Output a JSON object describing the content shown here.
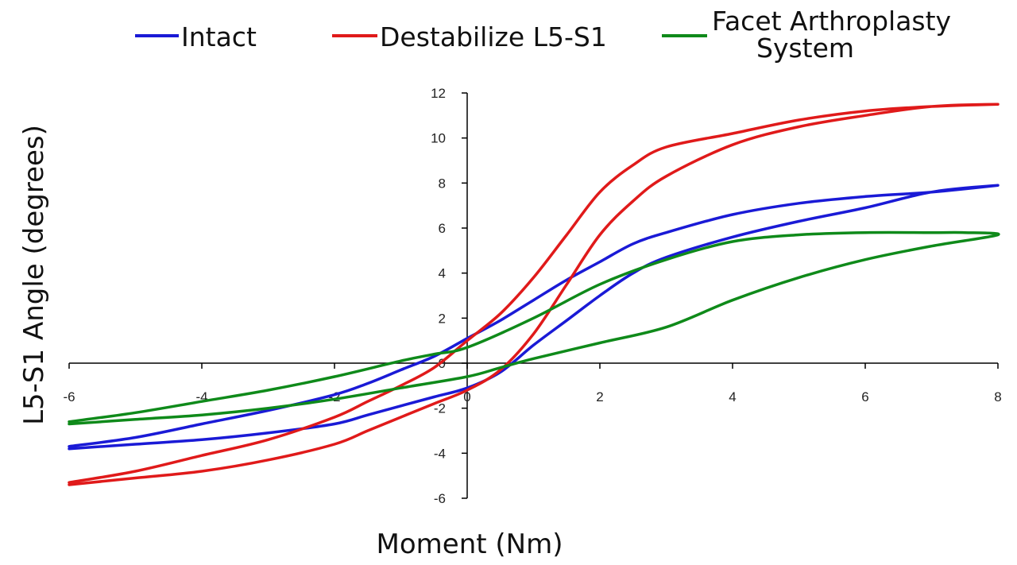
{
  "chart_data": {
    "type": "line",
    "title": "",
    "xlabel": "Moment (Nm)",
    "ylabel": "L5-S1 Angle (degrees)",
    "xlim": [
      -6,
      8
    ],
    "ylim": [
      -6,
      12
    ],
    "xticks": [
      -6,
      -4,
      -2,
      0,
      2,
      4,
      6,
      8
    ],
    "yticks": [
      -6,
      -4,
      -2,
      0,
      2,
      4,
      6,
      8,
      10,
      12
    ],
    "xtick_labels": [
      "-6",
      "-4",
      "-2",
      "0",
      "2",
      "4",
      "6",
      "8"
    ],
    "ytick_labels": [
      "-6",
      "-4",
      "-2",
      "0",
      "2",
      "4",
      "6",
      "8",
      "10",
      "12"
    ],
    "grid": false,
    "legend_position": "top",
    "series": [
      {
        "name": "Intact",
        "color": "#1a1ad6",
        "x": [
          -6,
          -5,
          -4,
          -3,
          -2,
          -1.5,
          -1,
          -0.5,
          0,
          0.5,
          1,
          1.5,
          2,
          2.5,
          3,
          4,
          5,
          6,
          7,
          8,
          7,
          6,
          5,
          4,
          3,
          2.5,
          2,
          1.5,
          1,
          0.5,
          0,
          -0.5,
          -1,
          -1.5,
          -2,
          -3,
          -4,
          -5,
          -6
        ],
        "y": [
          -3.8,
          -3.6,
          -3.4,
          -3.1,
          -2.7,
          -2.3,
          -1.9,
          -1.5,
          -1.1,
          -0.4,
          0.8,
          1.9,
          3.0,
          4.0,
          4.7,
          5.6,
          6.3,
          6.9,
          7.6,
          7.9,
          7.6,
          7.4,
          7.1,
          6.6,
          5.8,
          5.3,
          4.5,
          3.7,
          2.8,
          1.9,
          1.1,
          0.3,
          -0.3,
          -0.9,
          -1.4,
          -2.1,
          -2.7,
          -3.3,
          -3.7
        ]
      },
      {
        "name": "Destabilize L5-S1",
        "color": "#e01a1a",
        "x": [
          -6,
          -5,
          -4,
          -3,
          -2,
          -1.5,
          -1,
          -0.5,
          0,
          0.5,
          1,
          1.5,
          2,
          2.5,
          3,
          4,
          5,
          6,
          7,
          8,
          7,
          6,
          5,
          4,
          3,
          2.5,
          2,
          1.5,
          1,
          0.5,
          0,
          -0.5,
          -1,
          -1.5,
          -2,
          -3,
          -4,
          -5,
          -6
        ],
        "y": [
          -5.4,
          -5.1,
          -4.8,
          -4.3,
          -3.6,
          -3.0,
          -2.4,
          -1.8,
          -1.2,
          -0.3,
          1.3,
          3.5,
          5.7,
          7.2,
          8.3,
          9.7,
          10.5,
          11.0,
          11.4,
          11.5,
          11.4,
          11.2,
          10.8,
          10.2,
          9.6,
          8.8,
          7.6,
          5.7,
          3.8,
          2.2,
          1.0,
          -0.2,
          -1.0,
          -1.7,
          -2.4,
          -3.4,
          -4.1,
          -4.8,
          -5.3
        ]
      },
      {
        "name": "Facet Arthroplasty System",
        "color": "#0f8a1a",
        "x": [
          -6,
          -5,
          -4,
          -3,
          -2,
          -1,
          0,
          0.5,
          1,
          2,
          3,
          4,
          5,
          6,
          7,
          8,
          7.5,
          7,
          6,
          5,
          4,
          3,
          2,
          1,
          0,
          -0.5,
          -1,
          -2,
          -3,
          -4,
          -5,
          -6
        ],
        "y": [
          -2.7,
          -2.5,
          -2.3,
          -2.0,
          -1.6,
          -1.1,
          -0.6,
          -0.2,
          0.2,
          0.9,
          1.6,
          2.8,
          3.8,
          4.6,
          5.2,
          5.7,
          5.8,
          5.8,
          5.8,
          5.7,
          5.4,
          4.6,
          3.5,
          2.0,
          0.7,
          0.4,
          0.1,
          -0.6,
          -1.2,
          -1.7,
          -2.2,
          -2.6
        ]
      }
    ]
  },
  "legend": {
    "items": [
      {
        "label": "Intact"
      },
      {
        "label": "Destabilize L5-S1"
      },
      {
        "label_line1": "Facet Arthroplasty",
        "label_line2": "System"
      }
    ]
  }
}
